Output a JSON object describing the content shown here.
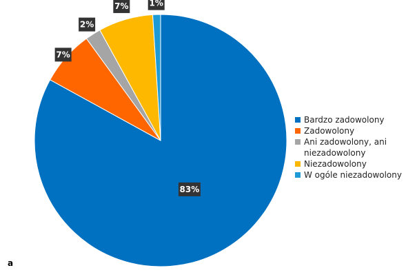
{
  "chart_data": {
    "type": "pie",
    "categories": [
      "Bardzo zadowolony",
      "Zadowolony",
      "Ani zadowolony, ani niezadowolony",
      "Niezadowolony",
      "W ogóle niezadowolony"
    ],
    "values": [
      83,
      7,
      2,
      7,
      1
    ],
    "labels": [
      "83%",
      "7%",
      "2%",
      "7%",
      "1%"
    ],
    "colors": [
      "#0070C0",
      "#FF6600",
      "#A5A5A5",
      "#FFB800",
      "#1E9BD7"
    ],
    "legend_position": "right",
    "title": ""
  },
  "legend": {
    "items": [
      {
        "label": "Bardzo zadowolony",
        "color": "#0070C0"
      },
      {
        "label": "Zadowolony",
        "color": "#FF6600"
      },
      {
        "label": "Ani zadowolony, ani niezadowolony",
        "color": "#A5A5A5"
      },
      {
        "label": "Niezadowolony",
        "color": "#FFB800"
      },
      {
        "label": "W ogóle niezadowolony",
        "color": "#1E9BD7"
      }
    ]
  },
  "panel_letter": "a"
}
